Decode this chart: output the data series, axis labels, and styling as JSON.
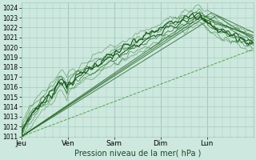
{
  "xlabel": "Pression niveau de la mer( hPa )",
  "ylim": [
    1011,
    1024.5
  ],
  "yticks": [
    1011,
    1012,
    1013,
    1014,
    1015,
    1016,
    1017,
    1018,
    1019,
    1020,
    1021,
    1022,
    1023,
    1024
  ],
  "day_labels": [
    "Jeu",
    "Ven",
    "Sam",
    "Dim",
    "Lun"
  ],
  "day_positions": [
    0,
    1,
    2,
    3,
    4
  ],
  "xlim": [
    0,
    5
  ],
  "bg_color": "#cde8de",
  "grid_color": "#a8ccbe",
  "line_dark": "#1a5c1a",
  "line_mid": "#2d7a2d",
  "line_dashed": "#4a9a4a",
  "n_points": 200,
  "figsize": [
    3.2,
    2.0
  ],
  "dpi": 100
}
